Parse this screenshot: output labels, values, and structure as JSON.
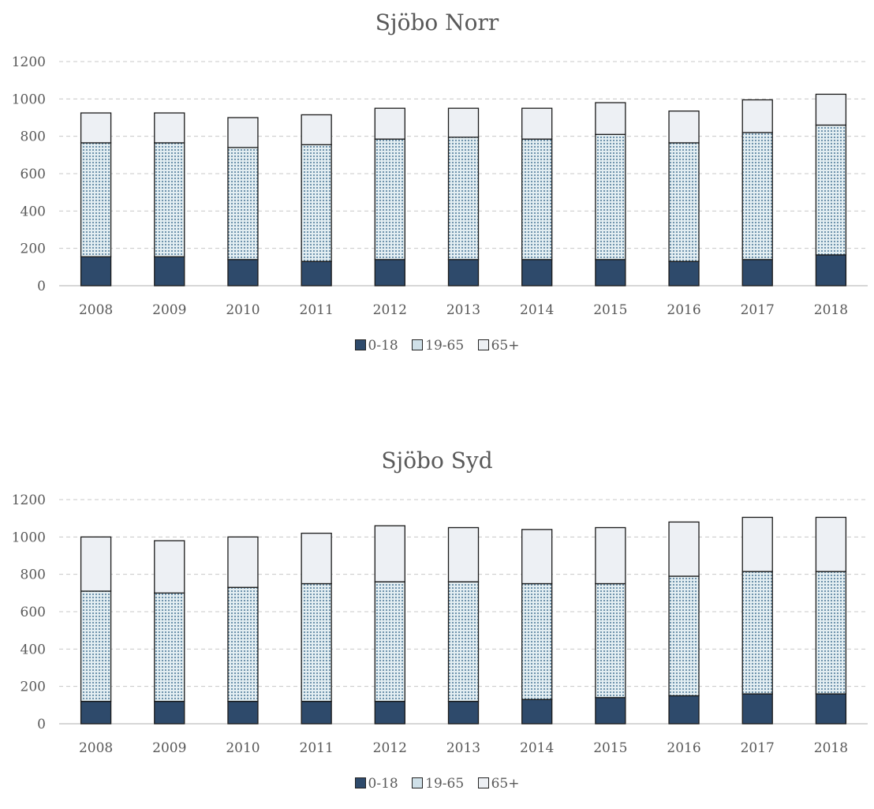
{
  "chart_data": [
    {
      "type": "bar",
      "stacked": true,
      "title": "Sjöbo Norr",
      "categories": [
        "2008",
        "2009",
        "2010",
        "2011",
        "2012",
        "2013",
        "2014",
        "2015",
        "2016",
        "2017",
        "2018"
      ],
      "series": [
        {
          "name": "0-18",
          "color": "#2e4a6b",
          "values": [
            155,
            155,
            140,
            130,
            140,
            140,
            140,
            140,
            130,
            140,
            165
          ]
        },
        {
          "name": "19-65",
          "color": "#cfe0e8",
          "values": [
            610,
            610,
            600,
            625,
            645,
            655,
            645,
            670,
            635,
            680,
            695
          ]
        },
        {
          "name": "65+",
          "color": "#edf0f4",
          "values": [
            160,
            160,
            160,
            160,
            165,
            155,
            165,
            170,
            170,
            175,
            165
          ]
        }
      ],
      "ylim": [
        0,
        1200
      ],
      "yticks": [
        0,
        200,
        400,
        600,
        800,
        1000,
        1200
      ],
      "grid": true,
      "legend": "bottom"
    },
    {
      "type": "bar",
      "stacked": true,
      "title": "Sjöbo Syd",
      "categories": [
        "2008",
        "2009",
        "2010",
        "2011",
        "2012",
        "2013",
        "2014",
        "2015",
        "2016",
        "2017",
        "2018"
      ],
      "series": [
        {
          "name": "0-18",
          "color": "#2e4a6b",
          "values": [
            120,
            120,
            120,
            120,
            120,
            120,
            130,
            140,
            150,
            160,
            160
          ]
        },
        {
          "name": "19-65",
          "color": "#cfe0e8",
          "values": [
            590,
            580,
            610,
            630,
            640,
            640,
            620,
            610,
            640,
            655,
            655
          ]
        },
        {
          "name": "65+",
          "color": "#edf0f4",
          "values": [
            290,
            280,
            270,
            270,
            300,
            290,
            290,
            300,
            290,
            290,
            290
          ]
        }
      ],
      "ylim": [
        0,
        1200
      ],
      "yticks": [
        0,
        200,
        400,
        600,
        800,
        1000,
        1200
      ],
      "grid": true,
      "legend": "bottom"
    }
  ]
}
